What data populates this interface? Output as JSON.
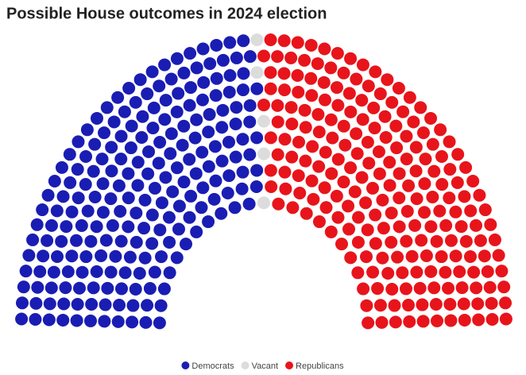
{
  "chart_data": {
    "type": "parliament",
    "title": "Possible House outcomes in 2024 election",
    "categories": [
      "Democrats",
      "Vacant",
      "Republicans"
    ],
    "values": [
      213,
      5,
      217
    ],
    "colors": [
      "#1a1db3",
      "#dcdcdc",
      "#e8141b"
    ]
  }
}
